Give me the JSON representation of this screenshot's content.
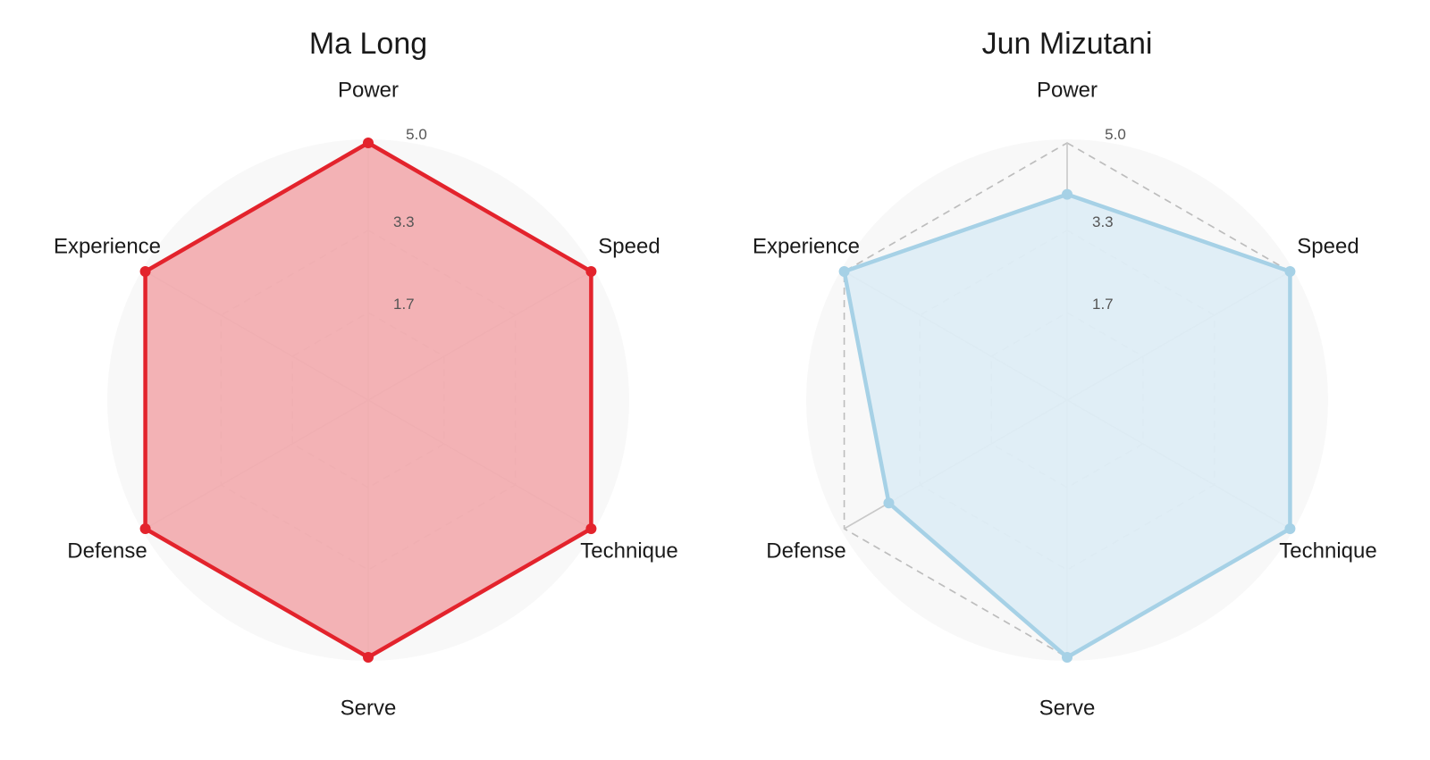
{
  "chart_data": [
    {
      "type": "radar",
      "title": "Ma Long",
      "axes": [
        "Power",
        "Speed",
        "Technique",
        "Serve",
        "Defense",
        "Experience"
      ],
      "rlim": [
        0,
        5
      ],
      "rticks": [
        1.7,
        3.3,
        5.0
      ],
      "rtick_labels": [
        "1.7",
        "3.3",
        "5.0"
      ],
      "grid": true,
      "series": [
        {
          "values": [
            5,
            5,
            5,
            5,
            5,
            5
          ],
          "color": "#e3232c",
          "fill": "#f2aeb1"
        }
      ]
    },
    {
      "type": "radar",
      "title": "Jun Mizutani",
      "axes": [
        "Power",
        "Speed",
        "Technique",
        "Serve",
        "Defense",
        "Experience"
      ],
      "rlim": [
        0,
        5
      ],
      "rticks": [
        1.7,
        3.3,
        5.0
      ],
      "rtick_labels": [
        "1.7",
        "3.3",
        "5.0"
      ],
      "grid": true,
      "series": [
        {
          "values": [
            4,
            5,
            5,
            5,
            4,
            5
          ],
          "color": "#a6d1e6",
          "fill": "#deedf5"
        }
      ]
    }
  ]
}
